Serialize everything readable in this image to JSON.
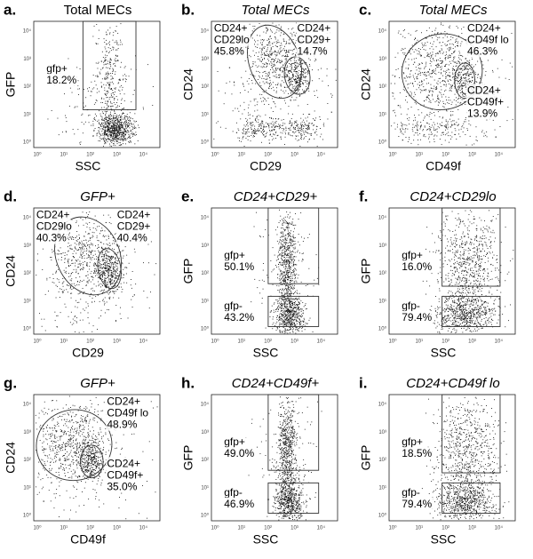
{
  "axis_ticks": [
    "10⁰",
    "10¹",
    "10²",
    "10³",
    "10⁴"
  ],
  "panels": [
    {
      "letter": "a.",
      "title": "Total MECs",
      "y_label": "GFP",
      "x_label": "SSC",
      "gates": [
        [
          "gfp+",
          "18.2%"
        ]
      ]
    },
    {
      "letter": "b.",
      "title": "Total MECs",
      "y_label": "CD24",
      "x_label": "CD29",
      "gates": [
        [
          "CD24+",
          "CD29lo",
          "45.8%"
        ],
        [
          "CD24+",
          "CD29+",
          "14.7%"
        ]
      ]
    },
    {
      "letter": "c.",
      "title": "Total MECs",
      "y_label": "CD24",
      "x_label": "CD49f",
      "gates": [
        [
          "CD24+",
          "CD49f lo",
          "46.3%"
        ],
        [
          "CD24+",
          "CD49f+",
          "13.9%"
        ]
      ]
    },
    {
      "letter": "d.",
      "title": "GFP+",
      "y_label": "CD24",
      "x_label": "CD29",
      "gates": [
        [
          "CD24+",
          "CD29lo",
          "40.3%"
        ],
        [
          "CD24+",
          "CD29+",
          "40.4%"
        ]
      ]
    },
    {
      "letter": "e.",
      "title": "CD24+CD29+",
      "y_label": "GFP",
      "x_label": "SSC",
      "gates": [
        [
          "gfp+",
          "50.1%"
        ],
        [
          "gfp-",
          "43.2%"
        ]
      ]
    },
    {
      "letter": "f.",
      "title": "CD24+CD29lo",
      "y_label": "GFP",
      "x_label": "SSC",
      "gates": [
        [
          "gfp+",
          "16.0%"
        ],
        [
          "gfp-",
          "79.4%"
        ]
      ]
    },
    {
      "letter": "g.",
      "title": "GFP+",
      "y_label": "CD24",
      "x_label": "CD49f",
      "gates": [
        [
          "CD24+",
          "CD49f lo",
          "48.9%"
        ],
        [
          "CD24+",
          "CD49f+",
          "35.0%"
        ]
      ]
    },
    {
      "letter": "h.",
      "title": "CD24+CD49f+",
      "y_label": "GFP",
      "x_label": "SSC",
      "gates": [
        [
          "gfp+",
          "49.0%"
        ],
        [
          "gfp-",
          "46.9%"
        ]
      ]
    },
    {
      "letter": "i.",
      "title": "CD24+CD49f lo",
      "y_label": "GFP",
      "x_label": "SSC",
      "gates": [
        [
          "gfp+",
          "18.5%"
        ],
        [
          "gfp-",
          "79.4%"
        ]
      ]
    }
  ]
}
